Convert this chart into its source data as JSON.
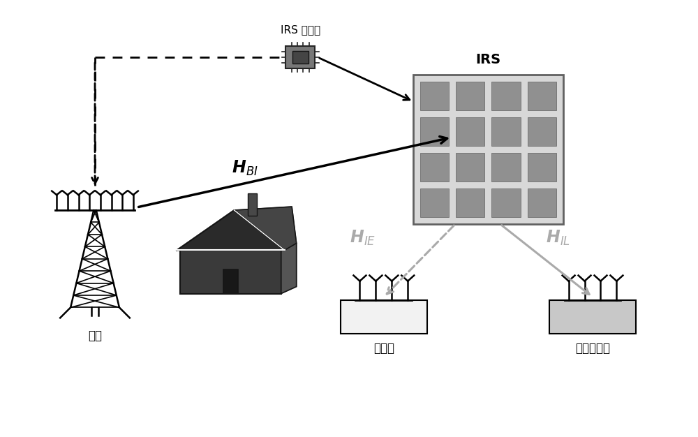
{
  "bg_color": "#ffffff",
  "labels": {
    "irs_controller": "IRS 控制器",
    "irs": "IRS",
    "base_station": "基站",
    "eavesdropper": "窃听者",
    "legitimate": "合法接收者"
  },
  "colors": {
    "black": "#000000",
    "dark_gray": "#383838",
    "med_gray": "#606060",
    "gray": "#888888",
    "light_gray": "#b8b8b8",
    "irs_panel_bg": "#d8d8d8",
    "irs_cell_bg": "#909090",
    "white": "#ffffff",
    "arrow_gray": "#aaaaaa",
    "eve_box": "#f2f2f2",
    "leg_box": "#c8c8c8"
  },
  "layout": {
    "fig_w": 10.0,
    "fig_h": 6.26,
    "xlim": [
      0,
      10
    ],
    "ylim": [
      0,
      6.26
    ]
  }
}
